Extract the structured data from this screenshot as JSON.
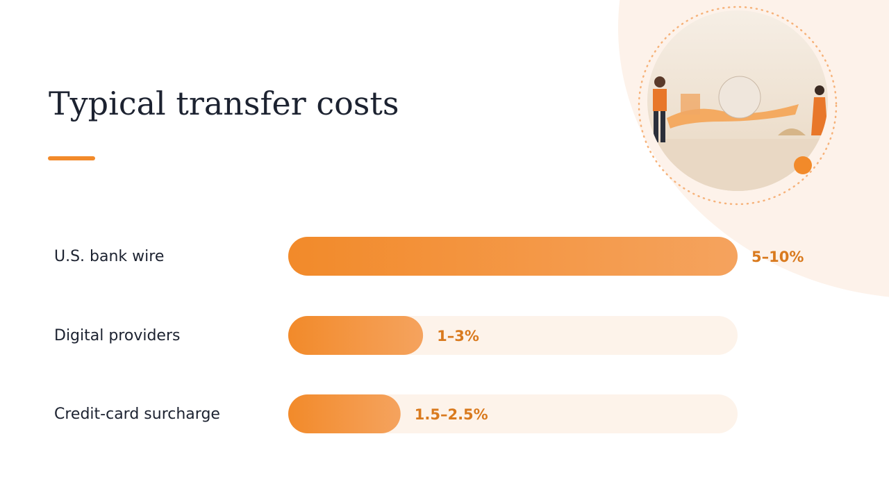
{
  "chart_data": {
    "type": "bar",
    "orientation": "horizontal",
    "title": "Typical transfer costs",
    "categories": [
      "U.S. bank wire",
      "Digital providers",
      "Credit-card surcharge"
    ],
    "values": [
      10,
      3,
      2.5
    ],
    "value_labels": [
      "5–10%",
      "1–3%",
      "1.5–2.5%"
    ],
    "xlim": [
      0,
      10
    ],
    "color": "#f28a2a"
  }
}
